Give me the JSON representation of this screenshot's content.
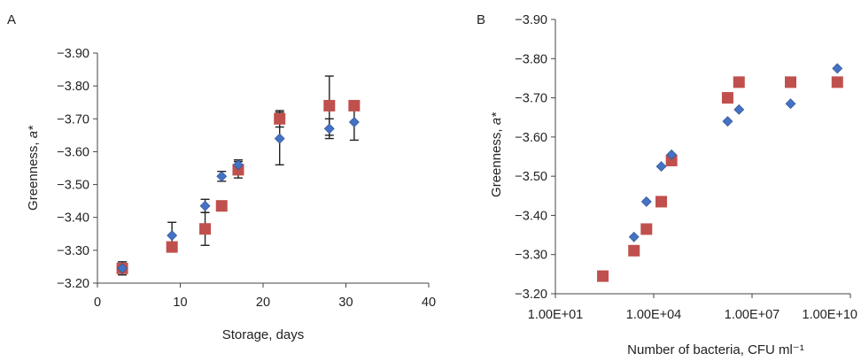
{
  "chart_data": [
    {
      "panel": "A",
      "type": "scatter",
      "xlabel": "Storage, days",
      "ylabel_prefix": "Greenness, ",
      "ylabel_var": "a*",
      "xlim": [
        0,
        40
      ],
      "ylim": [
        -3.2,
        -3.9
      ],
      "xticks": [
        "0",
        "10",
        "20",
        "30",
        "40"
      ],
      "yticks": [
        "−3.20",
        "−3.30",
        "−3.40",
        "−3.50",
        "−3.60",
        "−3.70",
        "−3.80",
        "−3.90"
      ],
      "grid": false,
      "series": [
        {
          "marker": "diamond",
          "color": "#4472c4",
          "points": [
            {
              "x": 3,
              "y": -3.245,
              "err": 0.01
            },
            {
              "x": 9,
              "y": -3.345,
              "err": 0.04
            },
            {
              "x": 13,
              "y": -3.435,
              "err": 0.02
            },
            {
              "x": 15,
              "y": -3.525,
              "err": 0.015
            },
            {
              "x": 17,
              "y": -3.56,
              "err": 0.015
            },
            {
              "x": 22,
              "y": -3.64,
              "err": 0.08
            },
            {
              "x": 28,
              "y": -3.67,
              "err": 0.03
            },
            {
              "x": 31,
              "y": -3.69,
              "err": 0.055
            }
          ]
        },
        {
          "marker": "square",
          "color": "#c0504d",
          "points": [
            {
              "x": 3,
              "y": -3.245,
              "err": 0.02
            },
            {
              "x": 9,
              "y": -3.31,
              "err": 0.01
            },
            {
              "x": 13,
              "y": -3.365,
              "err": 0.05
            },
            {
              "x": 15,
              "y": -3.435,
              "err": 0.015
            },
            {
              "x": 17,
              "y": -3.545,
              "err": 0.025
            },
            {
              "x": 22,
              "y": -3.7,
              "err": 0.025
            },
            {
              "x": 28,
              "y": -3.74,
              "err": 0.09
            },
            {
              "x": 31,
              "y": -3.74,
              "err": 0
            }
          ]
        }
      ]
    },
    {
      "panel": "B",
      "type": "scatter",
      "xlabel": "Number of bacteria, CFU ml⁻¹",
      "ylabel_prefix": "Greenness, ",
      "ylabel_var": "a*",
      "xscale": "log",
      "xlim": [
        10,
        10000000000
      ],
      "ylim": [
        -3.2,
        -3.9
      ],
      "xticks": [
        "1.00E+01",
        "1.00E+04",
        "1.00E+07",
        "1.00E+10"
      ],
      "yticks": [
        "−3.20",
        "−3.30",
        "−3.40",
        "−3.50",
        "−3.60",
        "−3.70",
        "−3.80",
        "−3.90"
      ],
      "grid": false,
      "series": [
        {
          "marker": "diamond",
          "color": "#4472c4",
          "points": [
            {
              "x": 2500,
              "y": -3.345
            },
            {
              "x": 6000,
              "y": -3.435
            },
            {
              "x": 17000,
              "y": -3.525
            },
            {
              "x": 35000,
              "y": -3.555
            },
            {
              "x": 1800000,
              "y": -3.64
            },
            {
              "x": 4000000,
              "y": -3.67
            },
            {
              "x": 150000000,
              "y": -3.685
            },
            {
              "x": 4000000000,
              "y": -3.775
            }
          ]
        },
        {
          "marker": "square",
          "color": "#c0504d",
          "points": [
            {
              "x": 280,
              "y": -3.245
            },
            {
              "x": 2500,
              "y": -3.31
            },
            {
              "x": 6000,
              "y": -3.365
            },
            {
              "x": 17000,
              "y": -3.435
            },
            {
              "x": 35000,
              "y": -3.54
            },
            {
              "x": 1800000,
              "y": -3.7
            },
            {
              "x": 4000000,
              "y": -3.74
            },
            {
              "x": 150000000,
              "y": -3.74
            },
            {
              "x": 4000000000,
              "y": -3.74
            }
          ]
        }
      ]
    }
  ]
}
